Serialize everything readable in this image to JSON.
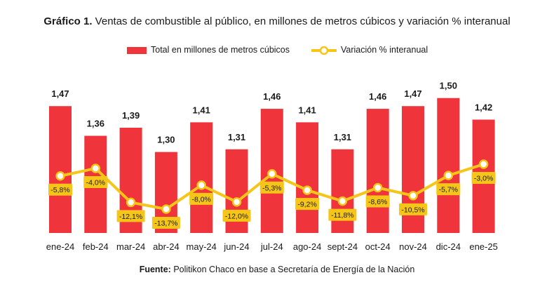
{
  "chart_data": {
    "type": "bar",
    "title_bold": "Gráfico 1.",
    "title_rest": " Ventas de combustible al público, en millones de metros cúbicos y variación % interanual",
    "categories": [
      "ene-24",
      "feb-24",
      "mar-24",
      "abr-24",
      "may-24",
      "jun-24",
      "jul-24",
      "ago-24",
      "sept-24",
      "oct-24",
      "nov-24",
      "dic-24",
      "ene-25"
    ],
    "series": [
      {
        "name": "Total en millones de metros cúbicos",
        "type": "bar",
        "color": "#f0343c",
        "values": [
          1.47,
          1.36,
          1.39,
          1.3,
          1.41,
          1.31,
          1.46,
          1.41,
          1.31,
          1.46,
          1.47,
          1.5,
          1.42
        ],
        "labels": [
          "1,47",
          "1,36",
          "1,39",
          "1,30",
          "1,41",
          "1,31",
          "1,46",
          "1,41",
          "1,31",
          "1,46",
          "1,47",
          "1,50",
          "1,42"
        ]
      },
      {
        "name": "Variación % interanual",
        "type": "line",
        "color": "#f5c518",
        "values": [
          -5.8,
          -4.0,
          -12.1,
          -13.7,
          -8.0,
          -12.0,
          -5.3,
          -9.2,
          -11.8,
          -8.6,
          -10.5,
          -5.7,
          -3.0
        ],
        "labels": [
          "-5,8%",
          "-4,0%",
          "-12,1%",
          "-13,7%",
          "-8,0%",
          "-12,0%",
          "-5,3%",
          "-9,2%",
          "-11,8%",
          "-8,6%",
          "-10,5%",
          "-5,7%",
          "-3,0%"
        ]
      }
    ],
    "bar_ylim": [
      1.0,
      1.52
    ],
    "line_ylim": [
      -16,
      0
    ],
    "grid": false,
    "legend_position": "top-center",
    "source_bold": "Fuente:",
    "source_rest": " Politikon Chaco en base a Secretaría de Energía de la Nación"
  }
}
